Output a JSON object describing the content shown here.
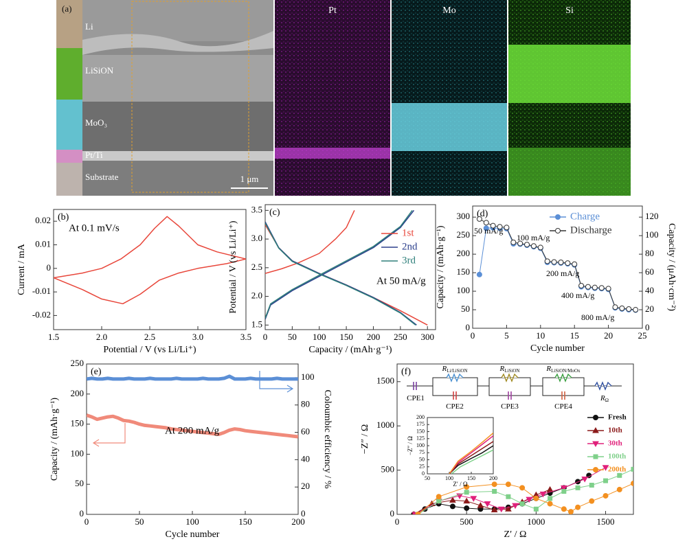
{
  "micrograph": {
    "panel_label": "(a)",
    "layers": [
      "Li",
      "LiSiON",
      "MoO₃",
      "Pt/Ti",
      "Substrate"
    ],
    "scale_bar": "1 μm",
    "maps": [
      "Pt",
      "Mo",
      "Si"
    ]
  },
  "chart_data": [
    {
      "type": "line",
      "panel_label": "(b)",
      "annotation": "At 0.1 mV/s",
      "x_label": "Potential / V (vs Li/Li⁺)",
      "y_label": "Current / mA",
      "xlim": [
        1.5,
        3.5
      ],
      "xticks": [
        1.5,
        {
          "value": 2,
          "label": "2.0"
        },
        2.5,
        {
          "value": 3,
          "label": "3.0"
        },
        3.5
      ],
      "ylim": [
        -0.026,
        0.025
      ],
      "yticks": [
        -0.02,
        -0.01,
        0,
        0.01,
        0.02
      ],
      "series": [
        {
          "color": "#e8463a",
          "x": [
            1.5,
            1.8,
            2.0,
            2.2,
            2.4,
            2.55,
            2.68,
            2.8,
            3.0,
            3.2,
            3.5,
            3.3,
            3.0,
            2.8,
            2.6,
            2.4,
            2.22,
            2.0,
            1.8,
            1.5
          ],
          "values": [
            -0.004,
            -0.002,
            0.0,
            0.004,
            0.01,
            0.017,
            0.022,
            0.018,
            0.01,
            0.007,
            0.004,
            0.002,
            0.0,
            -0.002,
            -0.005,
            -0.011,
            -0.015,
            -0.013,
            -0.009,
            -0.004
          ]
        }
      ]
    },
    {
      "type": "line",
      "panel_label": "(c)",
      "annotation": "At 50 mA/g",
      "x_label": "Capacity / (mAh·g⁻¹)",
      "y_label": "Potential / V (vs Li/Li⁺)",
      "legend": "right",
      "xlim": [
        0,
        315
      ],
      "xticks": [
        0,
        50,
        100,
        150,
        200,
        250,
        300
      ],
      "ylim": [
        1.42,
        3.6
      ],
      "yticks": [
        1.5,
        {
          "value": 2,
          "label": "2.0"
        },
        2.5,
        {
          "value": 3,
          "label": "3.0"
        },
        3.5
      ],
      "series": [
        {
          "name": "1st",
          "color": "#e8463a",
          "x": [
            0,
            25,
            50,
            100,
            150,
            200,
            250,
            300,
            null,
            0,
            30,
            60,
            100,
            130,
            150,
            165
          ],
          "values": [
            3.25,
            2.85,
            2.62,
            2.4,
            2.2,
            1.98,
            1.75,
            1.5,
            null,
            2.4,
            2.48,
            2.58,
            2.75,
            3.0,
            3.2,
            3.5
          ]
        },
        {
          "name": "2nd",
          "color": "#2b3f8c",
          "x": [
            0,
            25,
            50,
            100,
            150,
            200,
            250,
            280,
            null,
            0,
            10,
            50,
            100,
            150,
            200,
            250,
            275
          ],
          "values": [
            3.3,
            2.85,
            2.62,
            2.4,
            2.2,
            1.98,
            1.72,
            1.5,
            null,
            1.6,
            1.85,
            2.1,
            2.35,
            2.6,
            2.85,
            3.2,
            3.5
          ]
        },
        {
          "name": "3rd",
          "color": "#2e7f7a",
          "x": [
            0,
            25,
            50,
            100,
            150,
            200,
            250,
            278,
            null,
            0,
            10,
            50,
            100,
            150,
            200,
            250,
            272
          ],
          "values": [
            3.28,
            2.84,
            2.61,
            2.39,
            2.19,
            1.97,
            1.71,
            1.5,
            null,
            1.62,
            1.87,
            2.12,
            2.37,
            2.62,
            2.87,
            3.22,
            3.5
          ]
        }
      ]
    },
    {
      "type": "line",
      "panel_label": "(d)",
      "annotations": [
        "50 mA/g",
        "100 mA/g",
        "200 mA/g",
        "400 mA/g",
        "800 mA/g"
      ],
      "x_label": "Cycle number",
      "y_label": "Capacity / (mAh·g⁻¹)",
      "y2_label": "Capacity / (μAh·cm⁻²)",
      "legend": "upper right",
      "xlim": [
        0,
        25
      ],
      "xticks": [
        0,
        5,
        10,
        15,
        20,
        25
      ],
      "ylim": [
        0,
        330
      ],
      "yticks": [
        0,
        50,
        100,
        150,
        200,
        250,
        300
      ],
      "y2lim": [
        0,
        132
      ],
      "y2ticks": [
        0,
        20,
        40,
        60,
        80,
        100,
        120
      ],
      "series": [
        {
          "name": "Charge",
          "color": "#5b8fd6",
          "marker": "circle",
          "filled": true,
          "x": [
            1,
            2,
            3,
            4,
            5,
            6,
            7,
            8,
            9,
            10,
            11,
            12,
            13,
            14,
            15,
            16,
            17,
            18,
            19,
            20,
            21,
            22,
            23,
            24
          ],
          "values": [
            145,
            270,
            271,
            270,
            269,
            228,
            227,
            224,
            220,
            216,
            178,
            177,
            176,
            174,
            171,
            112,
            110,
            108,
            107,
            105,
            55,
            52,
            50,
            49
          ]
        },
        {
          "name": "Discharge",
          "color": "#333333",
          "marker": "circle",
          "filled": false,
          "x": [
            1,
            2,
            3,
            4,
            5,
            6,
            7,
            8,
            9,
            10,
            11,
            12,
            13,
            14,
            15,
            16,
            17,
            18,
            19,
            20,
            21,
            22,
            23,
            24
          ],
          "values": [
            295,
            285,
            277,
            274,
            272,
            232,
            229,
            226,
            222,
            218,
            181,
            179,
            178,
            176,
            173,
            115,
            112,
            110,
            109,
            107,
            57,
            54,
            52,
            50
          ]
        }
      ]
    },
    {
      "type": "line",
      "panel_label": "(e)",
      "annotation": "At 200 mA/g",
      "x_label": "Cycle number",
      "y_label": "Capacity / (mAh·g⁻¹)",
      "y2_label": "Coloumbic efficiency / %",
      "xlim": [
        0,
        200
      ],
      "xticks": [
        0,
        50,
        100,
        150,
        200
      ],
      "ylim": [
        0,
        250
      ],
      "yticks": [
        0,
        50,
        100,
        150,
        200,
        250
      ],
      "y2lim": [
        0,
        110
      ],
      "y2ticks": [
        0,
        20,
        40,
        60,
        80,
        100
      ],
      "series": [
        {
          "color": "#f08a7a",
          "x": [
            0,
            5,
            10,
            15,
            20,
            25,
            30,
            35,
            40,
            45,
            50,
            55,
            60,
            65,
            70,
            75,
            80,
            85,
            90,
            95,
            100,
            105,
            110,
            115,
            120,
            125,
            130,
            135,
            140,
            145,
            150,
            155,
            160,
            165,
            170,
            175,
            180,
            185,
            190,
            195,
            200
          ],
          "values": [
            165,
            162,
            158,
            160,
            162,
            163,
            160,
            156,
            155,
            153,
            150,
            148,
            147,
            146,
            145,
            144,
            142,
            141,
            140,
            139,
            138,
            137,
            136,
            135,
            134,
            133,
            136,
            140,
            142,
            141,
            139,
            138,
            137,
            136,
            135,
            134,
            133,
            132,
            131,
            130,
            129
          ]
        },
        {
          "color": "#5b8fd6",
          "axis": "y2",
          "x": [
            0,
            5,
            10,
            15,
            20,
            25,
            30,
            35,
            40,
            45,
            50,
            55,
            60,
            65,
            70,
            75,
            80,
            85,
            90,
            95,
            100,
            105,
            110,
            115,
            120,
            125,
            130,
            135,
            140,
            145,
            150,
            155,
            160,
            165,
            170,
            175,
            180,
            185,
            190,
            195,
            200
          ],
          "values": [
            99,
            99.5,
            99,
            99,
            99.5,
            99,
            99,
            99,
            99.5,
            99,
            99,
            99,
            99.5,
            99,
            99,
            99,
            99,
            99.5,
            99,
            99,
            99,
            99,
            99.5,
            99,
            99,
            99,
            99.5,
            101,
            99,
            99,
            99,
            99.5,
            99,
            99,
            99,
            99,
            99.5,
            99,
            99,
            99,
            99
          ]
        }
      ]
    },
    {
      "type": "line",
      "panel_label": "(f)",
      "x_label": "Z′ / Ω",
      "y_label": "−Z″ / Ω",
      "legend": "right",
      "circuit": [
        {
          "symbol": "CPE1"
        },
        {
          "symbol": "R",
          "subscript": "Li/LiSiON"
        },
        {
          "symbol": "CPE2"
        },
        {
          "symbol": "R",
          "subscript": "LiSiON"
        },
        {
          "symbol": "CPE3"
        },
        {
          "symbol": "R",
          "subscript": "LiSiON/MoOx"
        },
        {
          "symbol": "CPE4"
        },
        {
          "symbol": "R",
          "subscript": "Ω"
        }
      ],
      "xlim": [
        0,
        1700
      ],
      "xticks": [
        0,
        500,
        1000,
        1500
      ],
      "ylim": [
        0,
        1700
      ],
      "yticks": [
        0,
        500,
        1000,
        1500
      ],
      "series": [
        {
          "name": "Fresh",
          "color": "#111111",
          "marker": "circle",
          "filled": true,
          "x": [
            120,
            200,
            300,
            400,
            500,
            600,
            700,
            800,
            900,
            1000,
            1100,
            1200,
            1300,
            1380
          ],
          "values": [
            0,
            60,
            120,
            90,
            70,
            60,
            60,
            80,
            120,
            180,
            240,
            300,
            370,
            440
          ]
        },
        {
          "name": "10th",
          "color": "#8b1a1a",
          "marker": "triangle-up",
          "filled": true,
          "x": [
            120,
            250,
            400,
            500,
            600,
            700,
            800,
            900,
            1000,
            1100
          ],
          "values": [
            0,
            120,
            160,
            150,
            100,
            50,
            60,
            140,
            220,
            280
          ]
        },
        {
          "name": "30th",
          "color": "#e0207a",
          "marker": "triangle-down",
          "filled": true,
          "x": [
            130,
            300,
            450,
            550,
            650,
            750,
            850,
            950,
            1050,
            1200,
            1350,
            1500
          ],
          "values": [
            0,
            150,
            210,
            180,
            120,
            60,
            100,
            170,
            230,
            300,
            400,
            530
          ]
        },
        {
          "name": "100th",
          "color": "#7fd08a",
          "marker": "square",
          "filled": true,
          "x": [
            150,
            300,
            500,
            700,
            800,
            900,
            1000,
            1100,
            1200,
            1300,
            1400,
            1500,
            1600,
            1700
          ],
          "values": [
            0,
            150,
            250,
            260,
            200,
            120,
            60,
            180,
            260,
            300,
            330,
            380,
            440,
            510
          ]
        },
        {
          "name": "200th",
          "color": "#f39020",
          "marker": "circle",
          "filled": true,
          "x": [
            150,
            300,
            500,
            700,
            800,
            900,
            1000,
            1100,
            1200,
            1250,
            1300,
            1400,
            1500,
            1600,
            1700
          ],
          "values": [
            0,
            200,
            310,
            340,
            340,
            300,
            180,
            120,
            60,
            30,
            80,
            150,
            210,
            280,
            350
          ]
        }
      ]
    },
    {
      "type": "line",
      "x_label": "Z′ / Ω",
      "y_label": "−Z″ / Ω",
      "xlim": [
        50,
        200
      ],
      "xticks": [
        50,
        100,
        150,
        200
      ],
      "ylim": [
        0,
        200
      ],
      "yticks": [
        0,
        25,
        50,
        75,
        100,
        125,
        150,
        175,
        200
      ],
      "series": [
        {
          "color": "#111111",
          "x": [
            100,
            120,
            150,
            175,
            200
          ],
          "values": [
            0,
            30,
            55,
            75,
            100
          ]
        },
        {
          "color": "#8b1a1a",
          "x": [
            100,
            120,
            150,
            175,
            200
          ],
          "values": [
            0,
            35,
            65,
            90,
            115
          ]
        },
        {
          "color": "#e0207a",
          "x": [
            100,
            120,
            150,
            175,
            200
          ],
          "values": [
            0,
            40,
            75,
            105,
            135
          ]
        },
        {
          "color": "#7fd08a",
          "x": [
            105,
            125,
            150,
            175,
            200
          ],
          "values": [
            0,
            25,
            45,
            65,
            85
          ]
        },
        {
          "color": "#f39020",
          "x": [
            100,
            120,
            150,
            175,
            200
          ],
          "values": [
            0,
            45,
            80,
            112,
            145
          ]
        }
      ]
    }
  ]
}
